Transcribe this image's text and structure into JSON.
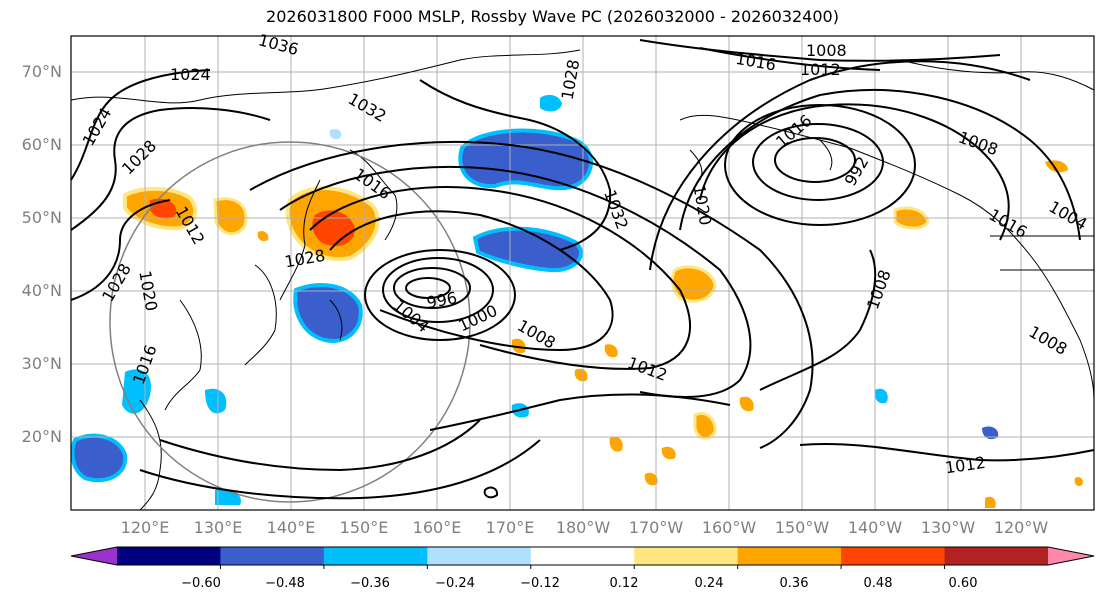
{
  "title": "2026031800 F000 MSLP, Rossby Wave PC (2026032000 - 2026032400)",
  "map": {
    "lat_labels": [
      "70°N",
      "60°N",
      "50°N",
      "40°N",
      "30°N",
      "20°N"
    ],
    "lon_labels": [
      "120°E",
      "130°E",
      "140°E",
      "150°E",
      "160°E",
      "170°E",
      "180°W",
      "170°W",
      "160°W",
      "150°W",
      "140°W",
      "130°W",
      "120°W"
    ],
    "isobar_labels": [
      "1036",
      "1024",
      "1024",
      "1028",
      "1032",
      "1016",
      "1012",
      "1028",
      "1028",
      "1020",
      "1016",
      "1004",
      "996",
      "1000",
      "1008",
      "1012",
      "1032",
      "1028",
      "1020",
      "1016",
      "1008",
      "1012",
      "992",
      "1008",
      "1008",
      "1004",
      "1016",
      "1008",
      "1012",
      "1016"
    ],
    "gridline_color": "#b0b0b0",
    "coastline_color": "#000000",
    "contour_color": "#000000",
    "highlight_circle_color": "#808080"
  },
  "colorbar": {
    "tick_labels": [
      "−0.60",
      "−0.48",
      "−0.36",
      "−0.24",
      "−0.12",
      "0.12",
      "0.24",
      "0.36",
      "0.48",
      "0.60"
    ],
    "colors": [
      "#9933cc",
      "#000080",
      "#3a5fcd",
      "#00bfff",
      "#b0e0ff",
      "#ffffff",
      "#ffe680",
      "#ffa500",
      "#ff4500",
      "#b22222",
      "#ff88aa"
    ]
  }
}
